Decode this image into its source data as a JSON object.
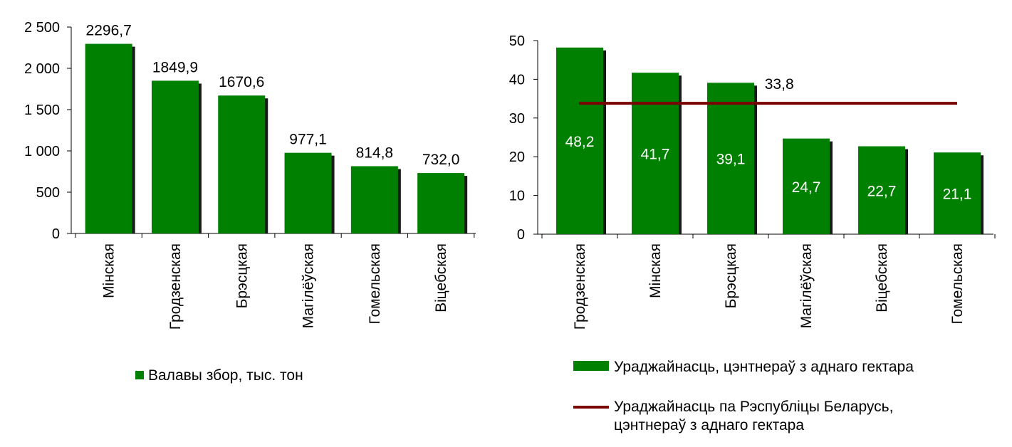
{
  "colors": {
    "bar": "#008000",
    "bar_shadow": "#1a1a1a",
    "average_line": "#7b0000",
    "axis": "#000000"
  },
  "chart_data": [
    {
      "type": "bar",
      "categories": [
        "Мінская",
        "Гродзенская",
        "Брэсцкая",
        "Магілёўская",
        "Гомельская",
        "Віцебская"
      ],
      "values": [
        2296.7,
        1849.9,
        1670.6,
        977.1,
        814.8,
        732.0
      ],
      "data_labels": [
        "2296,7",
        "1849,9",
        "1670,6",
        "977,1",
        "814,8",
        "732,0"
      ],
      "y_ticks": [
        "0",
        "500",
        "1 000",
        "1 500",
        "2 000",
        "2 500"
      ],
      "ylim": [
        0,
        2500
      ],
      "series": [
        {
          "name": "Валавы збор, тыс. тон",
          "values": [
            2296.7,
            1849.9,
            1670.6,
            977.1,
            814.8,
            732.0
          ]
        }
      ],
      "legend_position": "bottom",
      "grid": false
    },
    {
      "type": "bar",
      "categories": [
        "Гродзенская",
        "Мінская",
        "Брэсцкая",
        "Магілёўская",
        "Віцебская",
        "Гомельская"
      ],
      "values": [
        48.2,
        41.7,
        39.1,
        24.7,
        22.7,
        21.1
      ],
      "data_labels": [
        "48,2",
        "41,7",
        "39,1",
        "24,7",
        "22,7",
        "21,1"
      ],
      "y_ticks": [
        "0",
        "10",
        "20",
        "30",
        "40",
        "50"
      ],
      "ylim": [
        0,
        50
      ],
      "series": [
        {
          "name": "Ураджайнасць, цэнтнераў з аднаго гектара",
          "type": "bar",
          "values": [
            48.2,
            41.7,
            39.1,
            24.7,
            22.7,
            21.1
          ]
        },
        {
          "name": "Ураджайнасць па Рэспубліцы Беларусь, цэнтнераў з аднаго гектара",
          "type": "line",
          "value": 33.8,
          "label": "33,8"
        }
      ],
      "legend_position": "bottom",
      "grid": false
    }
  ]
}
